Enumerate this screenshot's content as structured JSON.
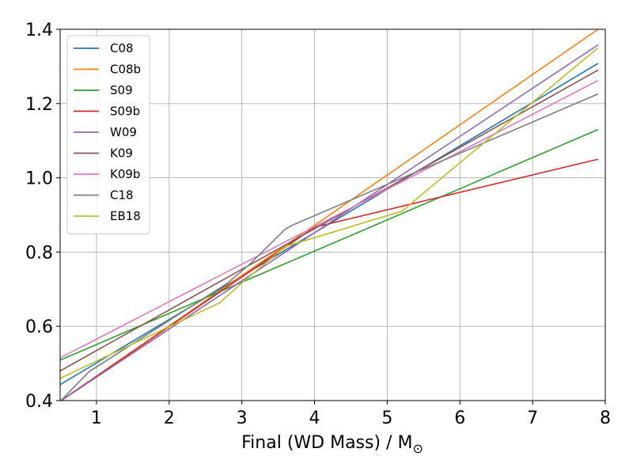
{
  "chart_data": {
    "type": "line",
    "xlabel": "Final (WD Mass) / M",
    "xlabel_subscript": "⊙",
    "ylabel": "",
    "xlim": [
      0.5,
      8.0
    ],
    "ylim": [
      0.4,
      1.4
    ],
    "xticks": [
      1,
      2,
      3,
      4,
      5,
      6,
      7,
      8
    ],
    "yticks": [
      0.4,
      0.6,
      0.8,
      1.0,
      1.2,
      1.4
    ],
    "xtick_labels": [
      "1",
      "2",
      "3",
      "4",
      "5",
      "6",
      "7",
      "8"
    ],
    "ytick_labels": [
      "0.4",
      "0.6",
      "0.8",
      "1.0",
      "1.2",
      "1.4"
    ],
    "grid": true,
    "legend_position": "top-left",
    "series": [
      {
        "name": "C08",
        "color": "#1f77b4",
        "x": [
          0.5,
          7.9
        ],
        "y": [
          0.443,
          1.308
        ]
      },
      {
        "name": "C08b",
        "color": "#ff7f0e",
        "x": [
          0.5,
          7.9
        ],
        "y": [
          0.398,
          1.4
        ]
      },
      {
        "name": "S09",
        "color": "#2ca02c",
        "x": [
          0.5,
          7.9
        ],
        "y": [
          0.509,
          1.13
        ]
      },
      {
        "name": "S09b",
        "color": "#d62728",
        "x": [
          0.5,
          4.0,
          7.9
        ],
        "y": [
          0.398,
          0.867,
          1.05
        ]
      },
      {
        "name": "W09",
        "color": "#9467bd",
        "x": [
          0.5,
          7.9
        ],
        "y": [
          0.398,
          1.358
        ]
      },
      {
        "name": "K09",
        "color": "#8c564b",
        "x": [
          0.5,
          7.9
        ],
        "y": [
          0.48,
          1.29
        ]
      },
      {
        "name": "K09b",
        "color": "#e377c2",
        "x": [
          0.5,
          7.9
        ],
        "y": [
          0.515,
          1.262
        ]
      },
      {
        "name": "C18",
        "color": "#7f7f7f",
        "x": [
          0.5,
          0.9,
          2.8,
          3.1,
          3.6,
          3.7,
          7.9
        ],
        "y": [
          0.398,
          0.478,
          0.716,
          0.766,
          0.862,
          0.873,
          1.226
        ]
      },
      {
        "name": "EB18",
        "color": "#bcbd22",
        "x": [
          0.5,
          2.7,
          3.0,
          3.6,
          5.2,
          7.9
        ],
        "y": [
          0.46,
          0.664,
          0.717,
          0.815,
          0.91,
          1.35
        ]
      }
    ]
  }
}
